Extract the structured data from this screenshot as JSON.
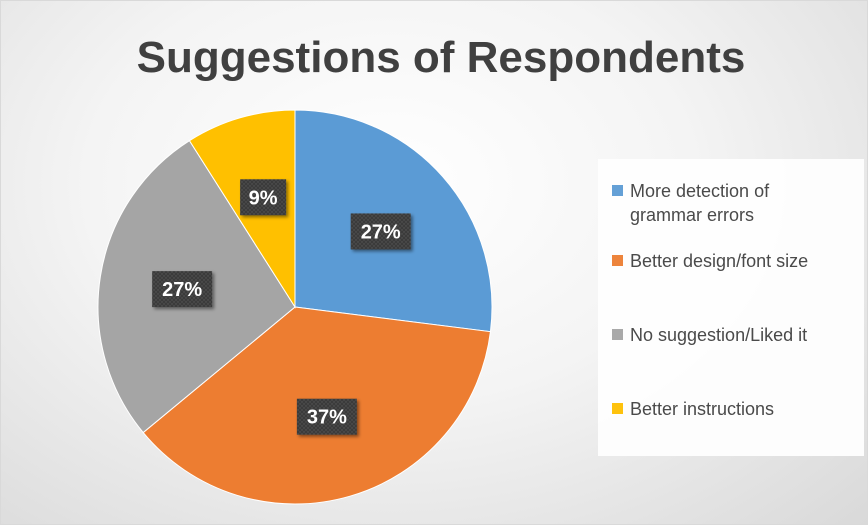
{
  "chart_data": {
    "type": "pie",
    "title": "Suggestions of Respondents",
    "slices": [
      {
        "label": "More detection of grammar errors",
        "value": 27,
        "data_label": "27%",
        "color": "#5B9BD5"
      },
      {
        "label": "Better design/font size",
        "value": 37,
        "data_label": "37%",
        "color": "#ED7D31"
      },
      {
        "label": "No suggestion/Liked it",
        "value": 27,
        "data_label": "27%",
        "color": "#A5A5A5"
      },
      {
        "label": "Better instructions",
        "value": 9,
        "data_label": "9%",
        "color": "#FFC000"
      }
    ],
    "legend_position": "right",
    "data_label_style": "dark boxes with white bold text"
  }
}
